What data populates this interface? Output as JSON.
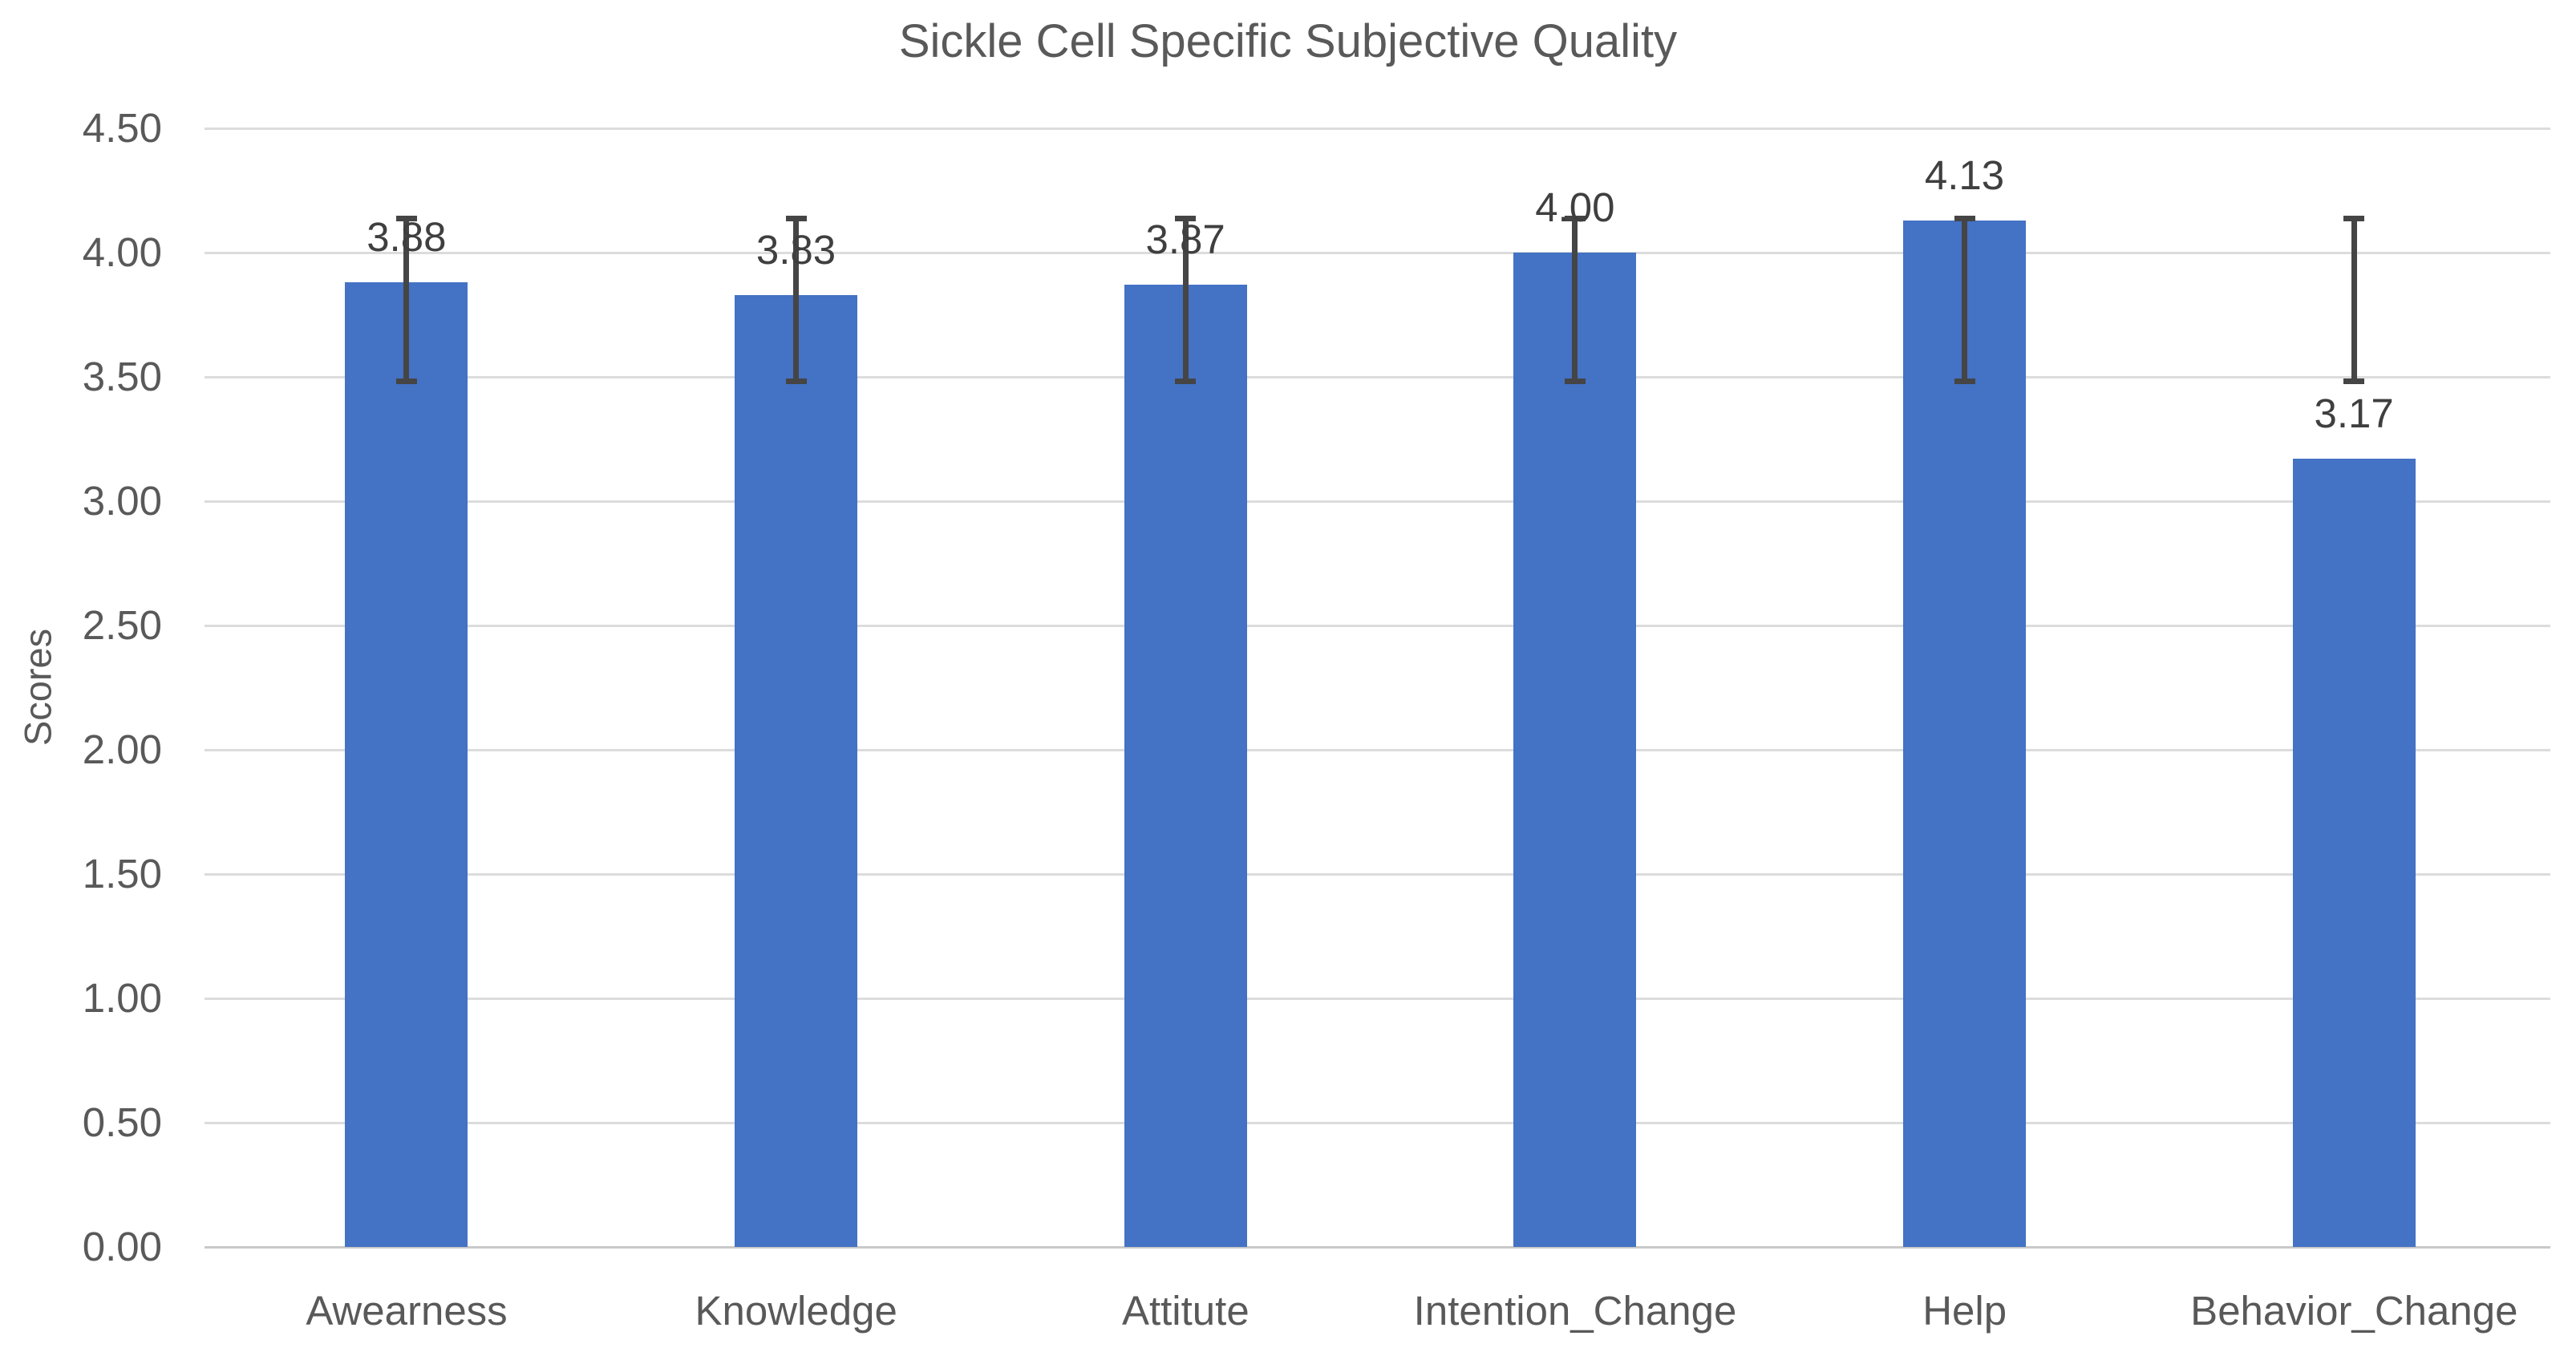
{
  "title": "Sickle Cell Specific Subjective Quality",
  "chart_data": {
    "type": "bar",
    "title": "Sickle Cell Specific Subjective Quality",
    "xlabel": "",
    "ylabel": "Scores",
    "categories": [
      "Awearness",
      "Knowledge",
      "Attitute",
      "Intention_Change",
      "Help",
      "Behavior_Change"
    ],
    "values": [
      3.88,
      3.83,
      3.87,
      4.0,
      4.13,
      3.17
    ],
    "data_labels": [
      "3.88",
      "3.83",
      "3.87",
      "4.00",
      "4.13",
      "3.17"
    ],
    "error_bars": {
      "low": 3.48,
      "high": 4.14
    },
    "ylim": [
      0,
      4.5
    ],
    "ytick_step": 0.5,
    "yticks": [
      {
        "value": 4.5,
        "label": "4.50"
      },
      {
        "value": 4.0,
        "label": "4.00"
      },
      {
        "value": 3.5,
        "label": "3.50"
      },
      {
        "value": 3.0,
        "label": "3.00"
      },
      {
        "value": 2.5,
        "label": "2.50"
      },
      {
        "value": 2.0,
        "label": "2.00"
      },
      {
        "value": 1.5,
        "label": "1.50"
      },
      {
        "value": 1.0,
        "label": "1.00"
      },
      {
        "value": 0.5,
        "label": "0.50"
      },
      {
        "value": 0.0,
        "label": "0.00"
      }
    ],
    "grid": true,
    "legend_position": "none",
    "colors": {
      "bar_fill": "#4472C4",
      "error_bar": "#454545",
      "gridline": "#DCDCDC",
      "axis_line": "#C9C9C9",
      "title_text": "#595959",
      "tick_text": "#595959",
      "data_label_text": "#3F3F3F",
      "background": "#FFFFFF"
    }
  }
}
